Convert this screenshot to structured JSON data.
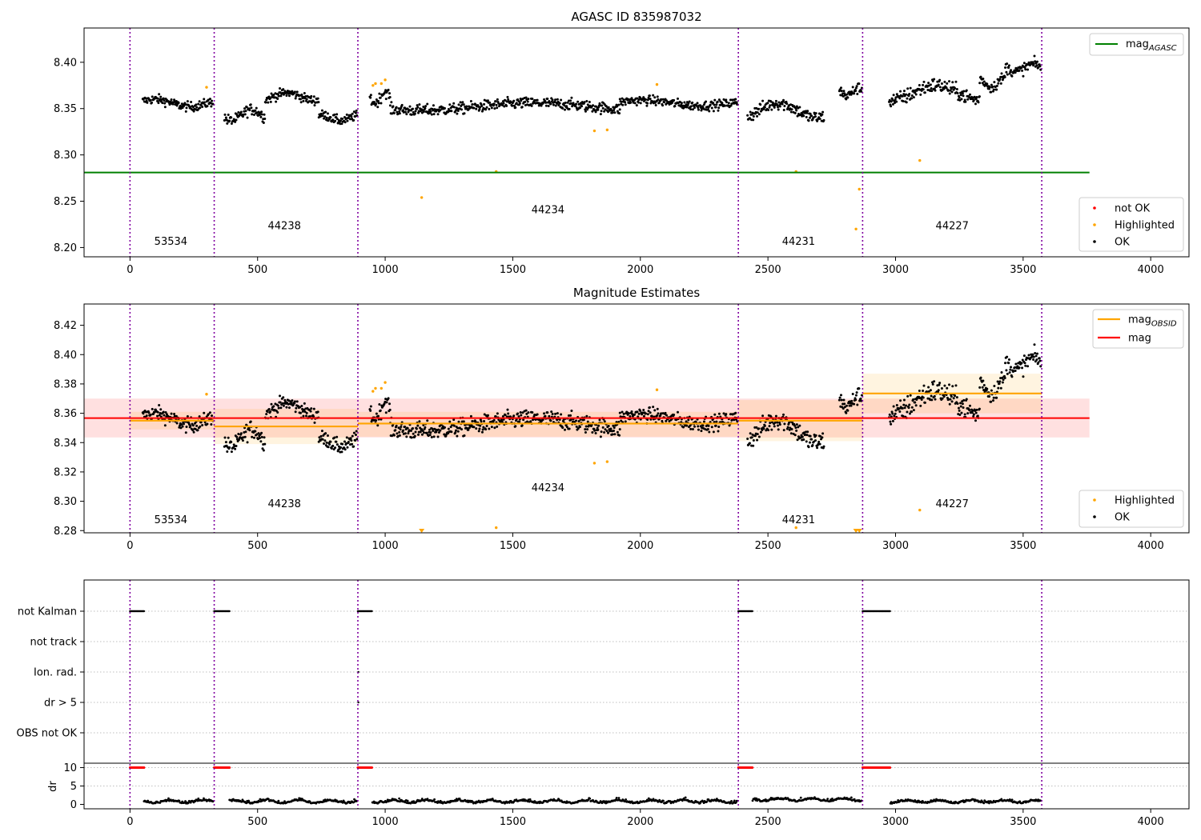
{
  "chart_data": [
    {
      "type": "scatter",
      "title": "AGASC ID 835987032",
      "xlim": [
        -180,
        4150
      ],
      "ylim": [
        8.19,
        8.437
      ],
      "x_ticks": [
        0,
        500,
        1000,
        1500,
        2000,
        2500,
        3000,
        3500,
        4000
      ],
      "y_ticks": [
        8.2,
        8.25,
        8.3,
        8.35,
        8.4
      ],
      "y_tick_labels": [
        "8.20",
        "8.25",
        "8.30",
        "8.35",
        "8.40"
      ],
      "obsid_boundaries": [
        0,
        330,
        893,
        2384,
        2871,
        3573
      ],
      "obsid_labels": [
        {
          "text": "53534",
          "x": 160,
          "y": 8.203
        },
        {
          "text": "44238",
          "x": 605,
          "y": 8.22
        },
        {
          "text": "44234",
          "x": 1638,
          "y": 8.237
        },
        {
          "text": "44231",
          "x": 2620,
          "y": 8.203
        },
        {
          "text": "44227",
          "x": 3222,
          "y": 8.22
        }
      ],
      "mag_agasc": 8.281,
      "mag_agasc_range": [
        -180,
        3760
      ],
      "series": [
        {
          "name": "OK",
          "color": "#000000"
        },
        {
          "name": "Highlighted",
          "color": "#ffa500"
        },
        {
          "name": "not OK",
          "color": "#ff0000"
        }
      ],
      "ok_segments": [
        {
          "x0": 50,
          "x1": 325,
          "base": 8.356,
          "amp": 0.004,
          "noise": 0.005
        },
        {
          "x0": 370,
          "x1": 530,
          "base": 8.343,
          "amp": 0.006,
          "noise": 0.006
        },
        {
          "x0": 530,
          "x1": 740,
          "base": 8.363,
          "amp": 0.004,
          "noise": 0.005
        },
        {
          "x0": 740,
          "x1": 890,
          "base": 8.34,
          "amp": 0.003,
          "noise": 0.005
        },
        {
          "x0": 940,
          "x1": 1020,
          "base": 8.362,
          "amp": 0.006,
          "noise": 0.006
        },
        {
          "x0": 1020,
          "x1": 1920,
          "base": 8.352,
          "amp": 0.004,
          "noise": 0.006
        },
        {
          "x0": 1920,
          "x1": 2380,
          "base": 8.356,
          "amp": 0.003,
          "noise": 0.005
        },
        {
          "x0": 2420,
          "x1": 2720,
          "base": 8.348,
          "amp": 0.008,
          "noise": 0.007
        },
        {
          "x0": 2780,
          "x1": 2870,
          "base": 8.368,
          "amp": 0.004,
          "noise": 0.006
        },
        {
          "x0": 2975,
          "x1": 3330,
          "base": 8.367,
          "amp": 0.008,
          "noise": 0.008
        },
        {
          "x0": 3330,
          "x1": 3430,
          "base": 8.378,
          "amp": 0.005,
          "noise": 0.006
        },
        {
          "x0": 3430,
          "x1": 3570,
          "base": 8.394,
          "amp": 0.004,
          "noise": 0.006
        }
      ],
      "highlighted_points": [
        [
          300,
          8.373
        ],
        [
          952,
          8.375
        ],
        [
          962,
          8.377
        ],
        [
          985,
          8.377
        ],
        [
          1000,
          8.381
        ],
        [
          1143,
          8.254
        ],
        [
          1435,
          8.282
        ],
        [
          1820,
          8.326
        ],
        [
          1870,
          8.327
        ],
        [
          2065,
          8.376
        ],
        [
          2610,
          8.282
        ],
        [
          2845,
          8.22
        ],
        [
          2858,
          8.263
        ],
        [
          3095,
          8.294
        ]
      ],
      "legend_line": "mag",
      "legend_line_sub": "AGASC",
      "legend_points": [
        "not OK",
        "Highlighted",
        "OK"
      ]
    },
    {
      "type": "scatter",
      "title": "Magnitude Estimates",
      "xlim": [
        -180,
        4150
      ],
      "ylim": [
        8.2785,
        8.4345
      ],
      "x_ticks": [
        0,
        500,
        1000,
        1500,
        2000,
        2500,
        3000,
        3500,
        4000
      ],
      "y_ticks": [
        8.28,
        8.3,
        8.32,
        8.34,
        8.36,
        8.38,
        8.4,
        8.42
      ],
      "y_tick_labels": [
        "8.28",
        "8.30",
        "8.32",
        "8.34",
        "8.36",
        "8.38",
        "8.40",
        "8.42"
      ],
      "obsid_boundaries": [
        0,
        330,
        893,
        2384,
        2871,
        3573
      ],
      "obsid_labels": [
        {
          "text": "53534",
          "x": 160,
          "y": 8.285
        },
        {
          "text": "44238",
          "x": 605,
          "y": 8.296
        },
        {
          "text": "44234",
          "x": 1638,
          "y": 8.307
        },
        {
          "text": "44231",
          "x": 2620,
          "y": 8.285
        },
        {
          "text": "44227",
          "x": 3222,
          "y": 8.296
        }
      ],
      "mag": 8.3567,
      "mag_band": [
        8.3435,
        8.37
      ],
      "mag_range": [
        -180,
        3760
      ],
      "mag_obsid": [
        {
          "x0": 0,
          "x1": 330,
          "mag": 8.355,
          "lo": 8.349,
          "hi": 8.361
        },
        {
          "x0": 330,
          "x1": 893,
          "mag": 8.351,
          "lo": 8.339,
          "hi": 8.363
        },
        {
          "x0": 893,
          "x1": 2384,
          "mag": 8.353,
          "lo": 8.344,
          "hi": 8.361
        },
        {
          "x0": 2384,
          "x1": 2871,
          "mag": 8.355,
          "lo": 8.341,
          "hi": 8.369
        },
        {
          "x0": 2871,
          "x1": 3573,
          "mag": 8.3735,
          "lo": 8.36,
          "hi": 8.387
        }
      ],
      "legend_lines": [
        {
          "label": "mag",
          "sub": "OBSID",
          "color": "#ffa500"
        },
        {
          "label": "mag",
          "sub": "",
          "color": "#ff0000"
        }
      ],
      "legend_points": [
        "Highlighted",
        "OK"
      ]
    },
    {
      "type": "scatter",
      "title": "",
      "xlim": [
        -180,
        4150
      ],
      "flag_rows": [
        "not Kalman",
        "not track",
        "Ion. rad.",
        "dr > 5",
        "OBS not OK"
      ],
      "not_kalman_ranges": [
        [
          0,
          55
        ],
        [
          330,
          390
        ],
        [
          893,
          950
        ],
        [
          2384,
          2440
        ],
        [
          2871,
          2980
        ]
      ],
      "dr_ylim": [
        -1.2,
        11.2
      ],
      "dr_y_ticks": [
        0,
        5,
        10
      ],
      "dr_ylabel": "dr",
      "dr_flagged_value": 10
    }
  ]
}
